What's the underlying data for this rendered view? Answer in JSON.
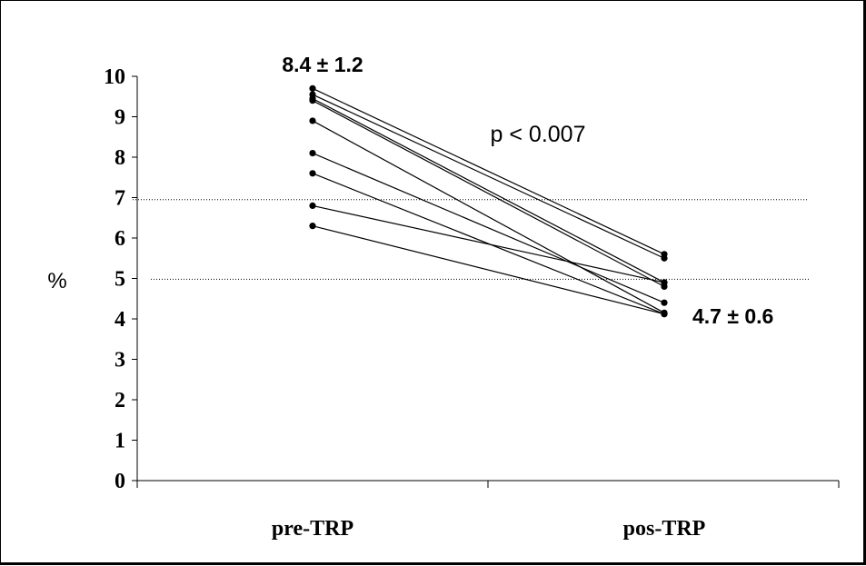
{
  "chart_data": {
    "type": "line",
    "categories": [
      "pre-TRP",
      "pos-TRP"
    ],
    "ylabel": "%",
    "xlabel": "",
    "ylim": [
      0,
      10
    ],
    "yticks": [
      "0",
      "1",
      "2",
      "3",
      "4",
      "5",
      "6",
      "7",
      "8",
      "9",
      "10"
    ],
    "reference_lines": [
      6.95,
      4.98
    ],
    "annotations": {
      "pre_mean": "8.4 ± 1.2",
      "post_mean": "4.7 ± 0.6",
      "p_value": "p < 0.007"
    },
    "series": [
      {
        "values": [
          9.7,
          5.6
        ]
      },
      {
        "values": [
          9.55,
          5.5
        ]
      },
      {
        "values": [
          9.45,
          4.9
        ]
      },
      {
        "values": [
          9.4,
          4.8
        ]
      },
      {
        "values": [
          8.9,
          4.15
        ]
      },
      {
        "values": [
          8.1,
          4.4
        ]
      },
      {
        "values": [
          7.6,
          4.12
        ]
      },
      {
        "values": [
          6.8,
          4.9
        ]
      },
      {
        "values": [
          6.3,
          4.12
        ]
      }
    ]
  }
}
